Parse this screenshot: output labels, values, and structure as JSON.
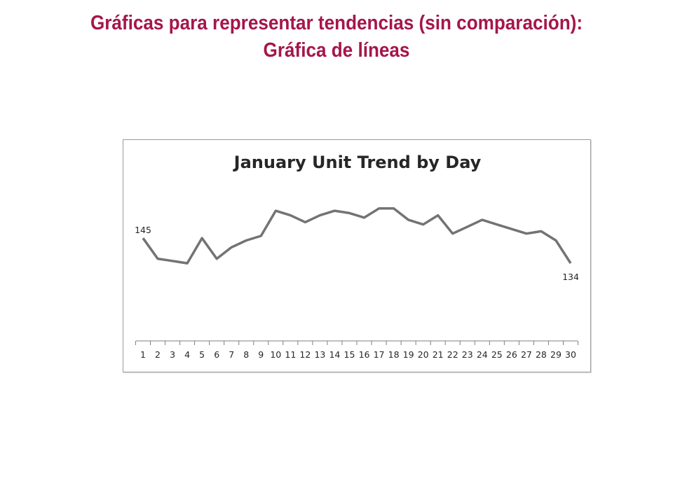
{
  "slide": {
    "title_line1": "Gráficas para representar tendencias (sin comparación):",
    "title_line2": "Gráfica de líneas"
  },
  "colors": {
    "title": "#a5164a",
    "line": "#737373",
    "axis": "#7f7f7f",
    "text": "#262626"
  },
  "chart_data": {
    "type": "line",
    "title": "January Unit Trend by Day",
    "xlabel": "",
    "ylabel": "",
    "categories": [
      "1",
      "2",
      "3",
      "4",
      "5",
      "6",
      "7",
      "8",
      "9",
      "10",
      "11",
      "12",
      "13",
      "14",
      "15",
      "16",
      "17",
      "18",
      "19",
      "20",
      "21",
      "22",
      "23",
      "24",
      "25",
      "26",
      "27",
      "28",
      "29",
      "30"
    ],
    "series": [
      {
        "values": [
          145,
          136,
          135,
          134,
          145,
          136,
          141,
          144,
          146,
          157,
          155,
          152,
          155,
          157,
          156,
          154,
          158,
          158,
          153,
          151,
          155,
          147,
          150,
          153,
          151,
          149,
          147,
          148,
          144,
          134
        ]
      }
    ],
    "data_labels": [
      {
        "index": 0,
        "text": "145"
      },
      {
        "index": 29,
        "text": "134"
      }
    ],
    "ylim": [
      100,
      165
    ],
    "grid": false,
    "legend": "none"
  }
}
